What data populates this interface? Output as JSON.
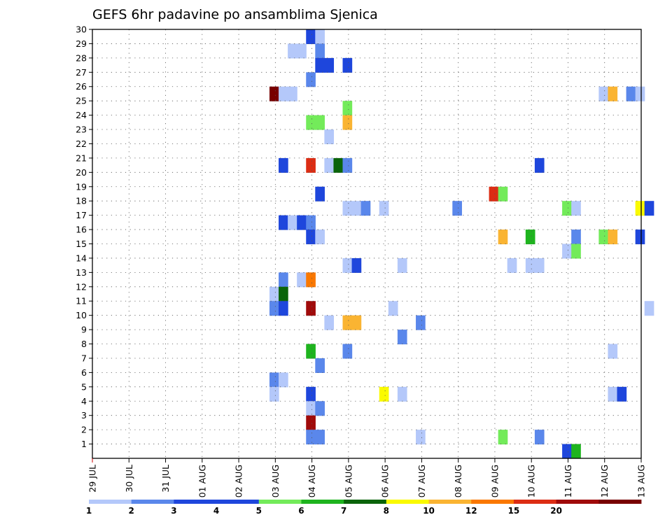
{
  "chart_data": {
    "type": "heatmap",
    "title": "GEFS 6hr padavine po ansamblima Sjenica",
    "x_tick_labels": [
      "29 JUL",
      "30 JUL",
      "31 JUL",
      "01 AUG",
      "02 AUG",
      "03 AUG",
      "04 AUG",
      "05 AUG",
      "06 AUG",
      "07 AUG",
      "08 AUG",
      "09 AUG",
      "10 AUG",
      "11 AUG",
      "12 AUG",
      "13 AUG"
    ],
    "y_tick_labels": [
      "1",
      "2",
      "3",
      "4",
      "5",
      "6",
      "7",
      "8",
      "9",
      "10",
      "11",
      "12",
      "13",
      "14",
      "15",
      "16",
      "17",
      "18",
      "19",
      "20",
      "21",
      "22",
      "23",
      "24",
      "25",
      "26",
      "27",
      "28",
      "29",
      "30"
    ],
    "ylim": [
      0,
      30
    ],
    "grid": true,
    "colorbar": {
      "labels": [
        "1",
        "2",
        "3",
        "4",
        "5",
        "6",
        "7",
        "8",
        "10",
        "12",
        "15",
        "20"
      ],
      "colors": [
        "#b4c8fa",
        "#5a87eb",
        "#1e46dc",
        "#1e46dc",
        "#73eb5a",
        "#1eb41e",
        "#0a640a",
        "#fafa00",
        "#fab432",
        "#fa7800",
        "#dc2d14",
        "#a00a0a",
        "#780000"
      ]
    },
    "cells": [
      {
        "x": 5.84,
        "y": 30,
        "level": 2
      },
      {
        "x": 6.09,
        "y": 30,
        "level": 0
      },
      {
        "x": 5.34,
        "y": 29,
        "level": 0
      },
      {
        "x": 5.59,
        "y": 29,
        "level": 0
      },
      {
        "x": 6.09,
        "y": 29,
        "level": 1
      },
      {
        "x": 6.09,
        "y": 28,
        "level": 2
      },
      {
        "x": 6.34,
        "y": 28,
        "level": 2
      },
      {
        "x": 6.84,
        "y": 28,
        "level": 2
      },
      {
        "x": 5.84,
        "y": 27,
        "level": 1
      },
      {
        "x": 4.84,
        "y": 26,
        "level": 12
      },
      {
        "x": 5.09,
        "y": 26,
        "level": 0
      },
      {
        "x": 5.34,
        "y": 26,
        "level": 0
      },
      {
        "x": 13.84,
        "y": 26,
        "level": 0
      },
      {
        "x": 14.09,
        "y": 26,
        "level": 8
      },
      {
        "x": 14.59,
        "y": 26,
        "level": 1
      },
      {
        "x": 14.84,
        "y": 26,
        "level": 0
      },
      {
        "x": 6.84,
        "y": 25,
        "level": 4
      },
      {
        "x": 5.84,
        "y": 24,
        "level": 4
      },
      {
        "x": 6.09,
        "y": 24,
        "level": 4
      },
      {
        "x": 6.84,
        "y": 24,
        "level": 8
      },
      {
        "x": 6.34,
        "y": 23,
        "level": 0
      },
      {
        "x": 5.09,
        "y": 21,
        "level": 2
      },
      {
        "x": 5.84,
        "y": 21,
        "level": 10
      },
      {
        "x": 6.34,
        "y": 21,
        "level": 0
      },
      {
        "x": 6.59,
        "y": 21,
        "level": 6
      },
      {
        "x": 6.84,
        "y": 21,
        "level": 1
      },
      {
        "x": 12.09,
        "y": 21,
        "level": 2
      },
      {
        "x": 6.09,
        "y": 19,
        "level": 2
      },
      {
        "x": 10.84,
        "y": 19,
        "level": 10
      },
      {
        "x": 11.09,
        "y": 19,
        "level": 4
      },
      {
        "x": 6.84,
        "y": 18,
        "level": 0
      },
      {
        "x": 7.09,
        "y": 18,
        "level": 0
      },
      {
        "x": 7.34,
        "y": 18,
        "level": 1
      },
      {
        "x": 7.84,
        "y": 18,
        "level": 0
      },
      {
        "x": 9.84,
        "y": 18,
        "level": 1
      },
      {
        "x": 12.84,
        "y": 18,
        "level": 4
      },
      {
        "x": 13.09,
        "y": 18,
        "level": 0
      },
      {
        "x": 14.84,
        "y": 18,
        "level": 7
      },
      {
        "x": 15.09,
        "y": 18,
        "level": 2
      },
      {
        "x": 5.09,
        "y": 17,
        "level": 2
      },
      {
        "x": 5.34,
        "y": 17,
        "level": 0
      },
      {
        "x": 5.59,
        "y": 17,
        "level": 2
      },
      {
        "x": 5.84,
        "y": 17,
        "level": 1
      },
      {
        "x": 5.84,
        "y": 16,
        "level": 2
      },
      {
        "x": 6.09,
        "y": 16,
        "level": 0
      },
      {
        "x": 11.09,
        "y": 16,
        "level": 8
      },
      {
        "x": 11.84,
        "y": 16,
        "level": 5
      },
      {
        "x": 13.09,
        "y": 16,
        "level": 1
      },
      {
        "x": 13.84,
        "y": 16,
        "level": 4
      },
      {
        "x": 14.09,
        "y": 16,
        "level": 8
      },
      {
        "x": 14.84,
        "y": 16,
        "level": 2
      },
      {
        "x": 12.84,
        "y": 15,
        "level": 0
      },
      {
        "x": 13.09,
        "y": 15,
        "level": 4
      },
      {
        "x": 6.84,
        "y": 14,
        "level": 0
      },
      {
        "x": 7.09,
        "y": 14,
        "level": 2
      },
      {
        "x": 8.34,
        "y": 14,
        "level": 0
      },
      {
        "x": 11.34,
        "y": 14,
        "level": 0
      },
      {
        "x": 11.84,
        "y": 14,
        "level": 0
      },
      {
        "x": 12.09,
        "y": 14,
        "level": 0
      },
      {
        "x": 5.09,
        "y": 13,
        "level": 1
      },
      {
        "x": 5.59,
        "y": 13,
        "level": 0
      },
      {
        "x": 5.84,
        "y": 13,
        "level": 9
      },
      {
        "x": 4.84,
        "y": 12,
        "level": 0
      },
      {
        "x": 5.09,
        "y": 12,
        "level": 6
      },
      {
        "x": 4.84,
        "y": 11,
        "level": 1
      },
      {
        "x": 5.09,
        "y": 11,
        "level": 2
      },
      {
        "x": 5.84,
        "y": 11,
        "level": 11
      },
      {
        "x": 8.09,
        "y": 11,
        "level": 0
      },
      {
        "x": 15.09,
        "y": 11,
        "level": 0
      },
      {
        "x": 6.34,
        "y": 10,
        "level": 0
      },
      {
        "x": 6.84,
        "y": 10,
        "level": 8
      },
      {
        "x": 7.09,
        "y": 10,
        "level": 8
      },
      {
        "x": 8.84,
        "y": 10,
        "level": 1
      },
      {
        "x": 8.34,
        "y": 9,
        "level": 1
      },
      {
        "x": 5.84,
        "y": 8,
        "level": 5
      },
      {
        "x": 6.84,
        "y": 8,
        "level": 1
      },
      {
        "x": 14.09,
        "y": 8,
        "level": 0
      },
      {
        "x": 6.09,
        "y": 7,
        "level": 1
      },
      {
        "x": 4.84,
        "y": 6,
        "level": 1
      },
      {
        "x": 5.09,
        "y": 6,
        "level": 0
      },
      {
        "x": 4.84,
        "y": 5,
        "level": 0
      },
      {
        "x": 5.84,
        "y": 5,
        "level": 2
      },
      {
        "x": 7.84,
        "y": 5,
        "level": 7
      },
      {
        "x": 8.34,
        "y": 5,
        "level": 0
      },
      {
        "x": 14.09,
        "y": 5,
        "level": 0
      },
      {
        "x": 14.34,
        "y": 5,
        "level": 2
      },
      {
        "x": 5.84,
        "y": 4,
        "level": 0
      },
      {
        "x": 6.09,
        "y": 4,
        "level": 1
      },
      {
        "x": 5.84,
        "y": 3,
        "level": 11
      },
      {
        "x": 5.84,
        "y": 2,
        "level": 1
      },
      {
        "x": 6.09,
        "y": 2,
        "level": 1
      },
      {
        "x": 8.84,
        "y": 2,
        "level": 0
      },
      {
        "x": 11.09,
        "y": 2,
        "level": 4
      },
      {
        "x": 12.09,
        "y": 2,
        "level": 1
      },
      {
        "x": 12.84,
        "y": 1,
        "level": 2
      },
      {
        "x": 13.09,
        "y": 1,
        "level": 5
      }
    ]
  }
}
